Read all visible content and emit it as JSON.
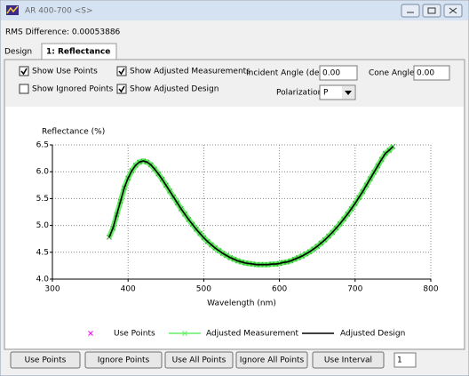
{
  "window": {
    "title": "AR 400-700 <S>"
  },
  "rms": "RMS Difference: 0.00053886",
  "tabs": [
    "Design",
    "1: Reflectance"
  ],
  "options": {
    "checkboxes": [
      {
        "label": "Show Use Points",
        "checked": true
      },
      {
        "label": "Show Ignored Points",
        "checked": false
      },
      {
        "label": "Show Adjusted Measurements",
        "checked": true
      },
      {
        "label": "Show Adjusted Design",
        "checked": true
      }
    ],
    "incident_angle": {
      "label": "Incident Angle (deg)",
      "value": "0.00"
    },
    "cone_angle": {
      "label": "Cone Angle",
      "value": "0.00"
    },
    "polarization": {
      "label": "Polarization",
      "value": "P"
    }
  },
  "chart_data": {
    "type": "line",
    "y_label": "Reflectance (%)",
    "x_label": "Wavelength (nm)",
    "xlim": [
      300,
      800
    ],
    "xticks": [
      300,
      400,
      500,
      600,
      700,
      800
    ],
    "ylim": [
      4,
      6.5
    ],
    "yticks": [
      {
        "value": 4,
        "label": "4.0"
      },
      {
        "value": 4.5,
        "label": "4.5"
      },
      {
        "value": 5,
        "label": "5.0"
      },
      {
        "value": 5.5,
        "label": "5.5"
      },
      {
        "value": 6,
        "label": "6.0"
      },
      {
        "value": 6.5,
        "label": "6.5"
      }
    ],
    "grid": true,
    "x": [
      375,
      380,
      385,
      390,
      395,
      400,
      405,
      410,
      415,
      420,
      425,
      430,
      435,
      440,
      445,
      450,
      455,
      460,
      465,
      470,
      475,
      480,
      485,
      490,
      495,
      500,
      505,
      510,
      515,
      520,
      525,
      530,
      535,
      540,
      545,
      550,
      555,
      560,
      565,
      570,
      575,
      580,
      585,
      590,
      595,
      600,
      605,
      610,
      615,
      620,
      625,
      630,
      635,
      640,
      645,
      650,
      655,
      660,
      665,
      670,
      675,
      680,
      685,
      690,
      695,
      700,
      705,
      710,
      715,
      720,
      725,
      730,
      735,
      740,
      745,
      750
    ],
    "series": [
      {
        "name": "Use Points",
        "color": "#ff00ff",
        "marker": "x",
        "line": false,
        "values": [
          4.78,
          4.95,
          5.2,
          5.45,
          5.7,
          5.88,
          6.02,
          6.12,
          6.18,
          6.2,
          6.18,
          6.13,
          6.05,
          5.96,
          5.86,
          5.75,
          5.64,
          5.53,
          5.42,
          5.31,
          5.21,
          5.11,
          5.02,
          4.93,
          4.85,
          4.77,
          4.7,
          4.64,
          4.58,
          4.53,
          4.48,
          4.44,
          4.4,
          4.37,
          4.34,
          4.32,
          4.3,
          4.29,
          4.28,
          4.27,
          4.27,
          4.27,
          4.27,
          4.28,
          4.28,
          4.29,
          4.31,
          4.32,
          4.34,
          4.37,
          4.4,
          4.43,
          4.47,
          4.51,
          4.56,
          4.61,
          4.67,
          4.73,
          4.8,
          4.87,
          4.95,
          5.03,
          5.12,
          5.21,
          5.31,
          5.41,
          5.52,
          5.63,
          5.75,
          5.87,
          5.99,
          6.11,
          6.23,
          6.34,
          6.4,
          6.47
        ]
      },
      {
        "name": "Adjusted Measurement",
        "color": "#66ee66",
        "marker": "x",
        "line": true,
        "values": [
          4.78,
          4.95,
          5.2,
          5.45,
          5.7,
          5.88,
          6.02,
          6.12,
          6.18,
          6.2,
          6.18,
          6.13,
          6.05,
          5.96,
          5.86,
          5.75,
          5.64,
          5.53,
          5.42,
          5.31,
          5.21,
          5.11,
          5.02,
          4.93,
          4.85,
          4.77,
          4.7,
          4.64,
          4.58,
          4.53,
          4.48,
          4.44,
          4.4,
          4.37,
          4.34,
          4.32,
          4.3,
          4.29,
          4.28,
          4.27,
          4.27,
          4.27,
          4.27,
          4.28,
          4.28,
          4.29,
          4.31,
          4.32,
          4.34,
          4.37,
          4.4,
          4.43,
          4.47,
          4.51,
          4.56,
          4.61,
          4.67,
          4.73,
          4.8,
          4.87,
          4.95,
          5.03,
          5.12,
          5.21,
          5.31,
          5.41,
          5.52,
          5.63,
          5.75,
          5.87,
          5.99,
          6.11,
          6.23,
          6.34,
          6.4,
          6.47
        ]
      },
      {
        "name": "Adjusted Design",
        "color": "#000000",
        "marker": "none",
        "line": true,
        "values": [
          4.78,
          4.95,
          5.2,
          5.45,
          5.7,
          5.88,
          6.02,
          6.12,
          6.18,
          6.2,
          6.18,
          6.13,
          6.05,
          5.96,
          5.86,
          5.75,
          5.64,
          5.53,
          5.42,
          5.31,
          5.21,
          5.11,
          5.02,
          4.93,
          4.85,
          4.77,
          4.7,
          4.64,
          4.58,
          4.53,
          4.48,
          4.44,
          4.4,
          4.37,
          4.34,
          4.32,
          4.3,
          4.29,
          4.28,
          4.27,
          4.27,
          4.27,
          4.27,
          4.28,
          4.28,
          4.29,
          4.31,
          4.32,
          4.34,
          4.37,
          4.4,
          4.43,
          4.47,
          4.51,
          4.56,
          4.61,
          4.67,
          4.73,
          4.8,
          4.87,
          4.95,
          5.03,
          5.12,
          5.21,
          5.31,
          5.41,
          5.52,
          5.63,
          5.75,
          5.87,
          5.99,
          6.11,
          6.23,
          6.34,
          6.4,
          6.47
        ]
      }
    ]
  },
  "buttons": [
    "Use Points",
    "Ignore Points",
    "Use All Points",
    "Ignore All Points",
    "Use Interval"
  ],
  "interval": "1"
}
